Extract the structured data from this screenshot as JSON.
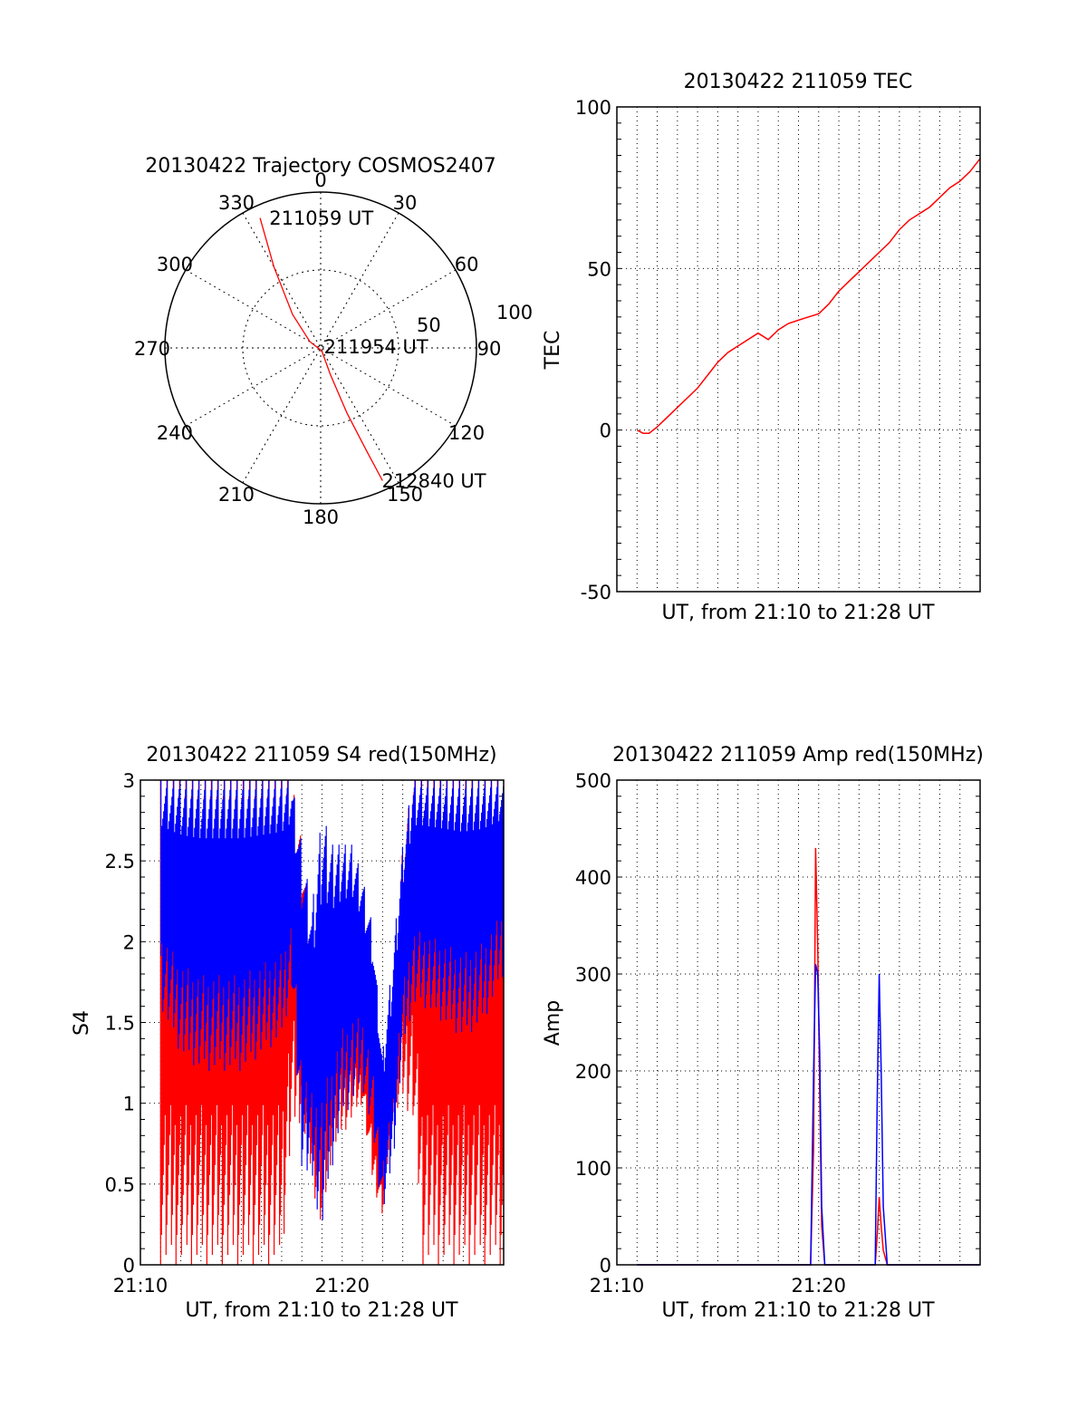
{
  "colors": {
    "red": "#ff0000",
    "blue": "#0000ff",
    "axis": "#000000",
    "grid": "#000000"
  },
  "chart_data": [
    {
      "id": "trajectory",
      "type": "polar",
      "title": "20130422 Trajectory COSMOS2407",
      "angle_labels": [
        "0",
        "30",
        "60",
        "90",
        "120",
        "150",
        "180",
        "210",
        "240",
        "270",
        "300",
        "330"
      ],
      "radius_labels": [
        "50",
        "100"
      ],
      "radius_max": 100,
      "grid": true,
      "trajectory": {
        "color": "red",
        "points": [
          {
            "az": 335,
            "r": 92
          },
          {
            "az": 330,
            "r": 60
          },
          {
            "az": 320,
            "r": 28
          },
          {
            "az": 300,
            "r": 8
          },
          {
            "az": 160,
            "r": 2
          },
          {
            "az": 160,
            "r": 18
          },
          {
            "az": 158,
            "r": 45
          },
          {
            "az": 156,
            "r": 72
          },
          {
            "az": 155,
            "r": 94
          }
        ]
      },
      "annotations": [
        {
          "text": "211059 UT",
          "az": 342,
          "r": 88
        },
        {
          "text": "211954 UT",
          "az": 82,
          "r": 8
        },
        {
          "text": "212840 UT",
          "az": 152,
          "r": 96
        }
      ]
    },
    {
      "id": "tec",
      "type": "line",
      "title": "20130422 211059 TEC",
      "xlabel": "UT, from 21:10 to 21:28 UT",
      "ylabel": "TEC",
      "ylim": [
        -50,
        100
      ],
      "yticks": [
        "100",
        "50",
        "0",
        "-50"
      ],
      "x_range_minutes": [
        0,
        18
      ],
      "grid": true,
      "series": [
        {
          "color": "red",
          "x": [
            1.0,
            1.3,
            1.6,
            2.0,
            2.5,
            3.0,
            3.5,
            4.0,
            4.5,
            5.0,
            5.5,
            6.0,
            6.5,
            7.0,
            7.5,
            8.0,
            8.5,
            9.0,
            9.5,
            10.0,
            10.5,
            11.0,
            11.5,
            12.0,
            12.5,
            13.0,
            13.5,
            14.0,
            14.5,
            15.0,
            15.5,
            16.0,
            16.5,
            17.0,
            17.5,
            18.0
          ],
          "y": [
            0,
            -1,
            -1,
            1,
            4,
            7,
            10,
            13,
            17,
            21,
            24,
            26,
            28,
            30,
            28,
            31,
            33,
            34,
            35,
            36,
            39,
            43,
            46,
            49,
            52,
            55,
            58,
            62,
            65,
            67,
            69,
            72,
            75,
            77,
            80,
            84
          ]
        }
      ]
    },
    {
      "id": "s4",
      "type": "line",
      "title": "20130422 211059 S4 red(150MHz)",
      "xlabel": "UT, from 21:10 to 21:28 UT",
      "ylabel": "S4",
      "ylim": [
        0,
        3
      ],
      "yticks": [
        "3",
        "2.5",
        "2",
        "1.5",
        "1",
        "0.5",
        "0"
      ],
      "xticks": [
        "21:10",
        "21:20"
      ],
      "x_range_minutes": [
        0,
        18
      ],
      "grid": true,
      "envelopes": [
        {
          "color": "red",
          "x": [
            0,
            1,
            2,
            3,
            4,
            5,
            6,
            7,
            7.5,
            8,
            8.5,
            9,
            9.5,
            10,
            10.5,
            11,
            11.5,
            12,
            12.5,
            13,
            13.5,
            14,
            15,
            16,
            17,
            18
          ],
          "low": [
            0,
            0,
            0,
            0,
            0,
            0,
            0,
            0,
            0.8,
            0.9,
            0.5,
            0.2,
            0.7,
            0.8,
            0.9,
            1.0,
            0.5,
            0.3,
            0.9,
            1.0,
            0.9,
            0,
            0,
            0,
            0,
            0
          ],
          "high": [
            3,
            3,
            3,
            3,
            3,
            3,
            3,
            3,
            3,
            2.6,
            2.1,
            1.8,
            1.9,
            2.0,
            1.9,
            1.6,
            1.5,
            0.8,
            1.5,
            2.6,
            3,
            3,
            3,
            3,
            3,
            3
          ]
        },
        {
          "color": "blue",
          "x": [
            0,
            1,
            2,
            3,
            4,
            5,
            6,
            7,
            7.5,
            8,
            8.5,
            9,
            9.5,
            10,
            10.5,
            11,
            11.5,
            12,
            12.5,
            13,
            13.5,
            14,
            15,
            16,
            17,
            18
          ],
          "low": [
            2.6,
            1.6,
            1.3,
            1.2,
            1.2,
            1.2,
            1.3,
            1.4,
            1.7,
            0.6,
            0.5,
            0.2,
            0.6,
            0.9,
            1.0,
            1.1,
            0.8,
            0.3,
            0.6,
            1.3,
            1.6,
            1.6,
            1.5,
            1.4,
            1.5,
            1.8
          ],
          "high": [
            3,
            3,
            3,
            3,
            3,
            3,
            3,
            3,
            3,
            2.6,
            2.2,
            2.8,
            2.6,
            2.6,
            2.6,
            2.4,
            2.1,
            1.3,
            1.9,
            2.6,
            3,
            3,
            3,
            3,
            3,
            3
          ]
        }
      ]
    },
    {
      "id": "amp",
      "type": "line",
      "title": "20130422 211059 Amp red(150MHz)",
      "xlabel": "UT, from 21:10 to 21:28 UT",
      "ylabel": "Amp",
      "ylim": [
        0,
        500
      ],
      "yticks": [
        "500",
        "400",
        "300",
        "200",
        "100",
        "0"
      ],
      "xticks": [
        "21:10",
        "21:20"
      ],
      "x_range_minutes": [
        0,
        18
      ],
      "grid": true,
      "series": [
        {
          "color": "red",
          "x": [
            1,
            9.6,
            9.75,
            9.85,
            9.95,
            10.05,
            10.15,
            10.3,
            12.5,
            12.8,
            12.9,
            13.0,
            13.1,
            13.2,
            13.4,
            18
          ],
          "y": [
            0,
            0,
            120,
            430,
            330,
            180,
            40,
            0,
            0,
            0,
            30,
            70,
            40,
            15,
            0,
            0
          ]
        },
        {
          "color": "blue",
          "x": [
            1,
            9.6,
            9.75,
            9.85,
            9.95,
            10.05,
            10.15,
            10.3,
            12.5,
            12.8,
            12.9,
            13.0,
            13.1,
            13.2,
            13.4,
            18
          ],
          "y": [
            0,
            0,
            200,
            310,
            300,
            220,
            60,
            0,
            0,
            0,
            170,
            300,
            200,
            60,
            0,
            0
          ]
        }
      ]
    }
  ]
}
